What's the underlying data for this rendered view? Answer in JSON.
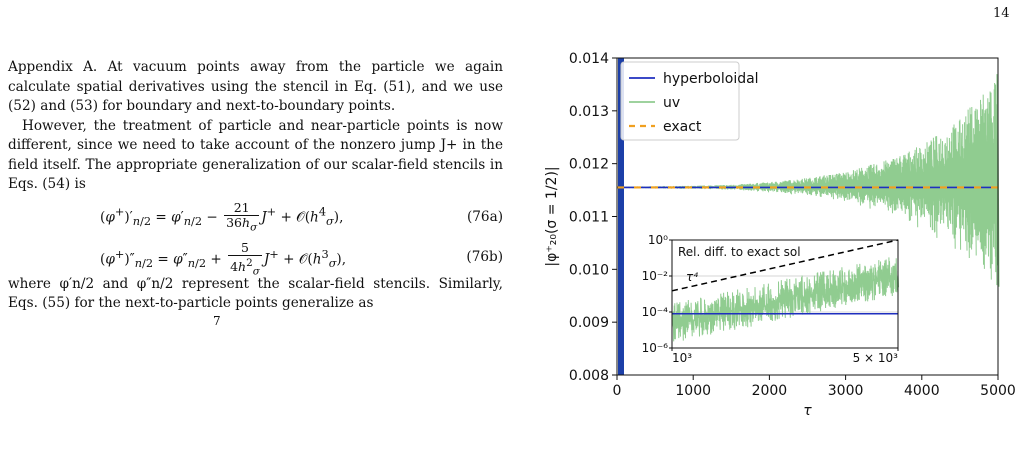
{
  "page": {
    "number": "14"
  },
  "text": {
    "paragraph1": "Appendix A. At vacuum points away from the particle we again calculate spatial derivatives using the stencil in Eq. (51), and we use (52) and (53) for boundary and next-to-boundary points.",
    "paragraph2": "However, the treatment of particle and near-particle points is now different, since we need to take account of the nonzero jump J+ in the field itself. The appropriate generalization of our scalar-field stencils in Eqs. (54) is",
    "eq76a_tag": "(76a)",
    "eq76b_tag": "(76b)",
    "paragraph3": "where φ′n/2 and φ″n/2 represent the scalar-field stencils. Similarly, Eqs. (55) for the next-to-particle points generalize as",
    "trailing_fragment": "7"
  },
  "chart_data": {
    "type": "line",
    "ylabel": "|φ⁺₂₀(σ = 1/2)|",
    "xlabel": "τ",
    "xlim": [
      0,
      5000
    ],
    "ylim": [
      0.008,
      0.014
    ],
    "x_ticks": [
      "0",
      "1000",
      "2000",
      "3000",
      "4000",
      "5000"
    ],
    "y_ticks": [
      "0.008",
      "0.009",
      "0.010",
      "0.011",
      "0.012",
      "0.013",
      "0.014"
    ],
    "grid": false,
    "legend_position": "top-left",
    "series": [
      {
        "name": "hyperboloidal",
        "color": "#1f2fbf",
        "style": "solid",
        "value": 0.01155,
        "x": [
          0,
          5000
        ]
      },
      {
        "name": "uv",
        "color": "#90cc90",
        "style": "solid",
        "value_center": 0.01155,
        "envelope_x": [
          0,
          1000,
          1500,
          2000,
          2500,
          3000,
          3500,
          4000,
          4500,
          5000
        ],
        "envelope_halfwidth": [
          1e-05,
          3e-05,
          5e-05,
          0.0001,
          0.00018,
          0.0003,
          0.0005,
          0.0008,
          0.0013,
          0.0022
        ]
      },
      {
        "name": "exact",
        "color": "#f0a020",
        "style": "dashed",
        "value": 0.01155,
        "x": [
          0,
          5000
        ]
      }
    ],
    "inset": {
      "title": "Rel. diff. to exact sol",
      "annotation": "τ⁴",
      "scale": "log-log",
      "xlim": [
        1000,
        5000
      ],
      "ylim": [
        1e-06,
        1
      ],
      "x_ticks": [
        "10³",
        "5 × 10³"
      ],
      "y_ticks": [
        "10⁰",
        "10⁻²",
        "10⁻⁴",
        "10⁻⁶"
      ],
      "series": [
        {
          "name": "hyperboloidal",
          "color": "#1f2fbf",
          "value": 8e-05
        },
        {
          "name": "uv",
          "color": "#90cc90",
          "upper": [
            [
              1000,
              0.0003
            ],
            [
              5000,
              0.15
            ]
          ],
          "lower": [
            [
              1000,
              1e-06
            ],
            [
              5000,
              0.0005
            ]
          ]
        },
        {
          "name": "τ⁴ reference",
          "color": "#000000",
          "style": "dashed",
          "points": [
            [
              1000,
              0.0015
            ],
            [
              5000,
              1.0
            ]
          ]
        }
      ]
    }
  }
}
